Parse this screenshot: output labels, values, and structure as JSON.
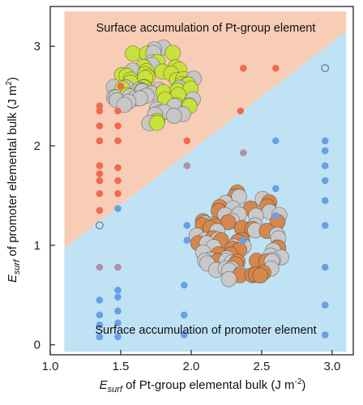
{
  "chart_data": {
    "type": "scatter",
    "xlabel": {
      "symbol": "E",
      "subscript": "surf",
      "text": " of Pt-group elemental bulk (J m",
      "sup": "-2",
      "close": ")"
    },
    "ylabel": {
      "symbol": "E",
      "subscript": "surf",
      "text": " of promoter elemental bulk (J m",
      "sup": "2",
      "close": ")"
    },
    "xlim": [
      1.0,
      3.15
    ],
    "ylim": [
      -0.1,
      3.4
    ],
    "x_ticks": [
      "1.0",
      "1.5",
      "2.0",
      "2.5",
      "3.0"
    ],
    "y_ticks": [
      "0",
      "1",
      "2",
      "3"
    ],
    "regions": [
      {
        "name": "upper",
        "label": "Surface accumulation of Pt-group element",
        "color": "#f8cdb5"
      },
      {
        "name": "lower",
        "label": "Surface accumulation of promoter element",
        "color": "#bfe3f4"
      }
    ],
    "boundary_line": {
      "x": [
        1.1,
        3.1
      ],
      "y": [
        0.97,
        3.15
      ]
    },
    "series": [
      {
        "marker_color": "#ef6b4f",
        "points": [
          [
            1.35,
            1.35
          ],
          [
            1.35,
            1.52
          ],
          [
            1.35,
            1.65
          ],
          [
            1.35,
            1.72
          ],
          [
            1.35,
            1.8
          ],
          [
            1.35,
            2.05
          ],
          [
            1.35,
            2.2
          ],
          [
            1.35,
            2.35
          ],
          [
            1.35,
            2.4
          ],
          [
            1.48,
            1.52
          ],
          [
            1.48,
            1.65
          ],
          [
            1.48,
            1.78
          ],
          [
            1.48,
            2.05
          ],
          [
            1.48,
            2.2
          ],
          [
            1.48,
            2.35
          ],
          [
            1.5,
            2.6
          ],
          [
            1.97,
            2.05
          ],
          [
            2.35,
            2.35
          ],
          [
            2.37,
            2.78
          ],
          [
            2.6,
            2.78
          ]
        ]
      },
      {
        "marker_color": "#6a9ee8",
        "points": [
          [
            1.35,
            0.08
          ],
          [
            1.35,
            0.2
          ],
          [
            1.35,
            0.3
          ],
          [
            1.35,
            0.45
          ],
          [
            1.48,
            0.08
          ],
          [
            1.48,
            0.22
          ],
          [
            1.48,
            0.34
          ],
          [
            1.48,
            0.48
          ],
          [
            1.48,
            0.55
          ],
          [
            1.48,
            1.37
          ],
          [
            1.95,
            0.1
          ],
          [
            1.95,
            0.3
          ],
          [
            1.95,
            0.6
          ],
          [
            1.97,
            1.05
          ],
          [
            1.97,
            1.2
          ],
          [
            2.37,
            1.05
          ],
          [
            2.6,
            1.3
          ],
          [
            2.6,
            1.57
          ],
          [
            2.95,
            0.1
          ],
          [
            2.95,
            0.4
          ],
          [
            2.95,
            0.78
          ],
          [
            2.95,
            1.2
          ],
          [
            2.95,
            1.45
          ],
          [
            2.95,
            1.65
          ],
          [
            2.95,
            1.8
          ],
          [
            2.95,
            1.95
          ],
          [
            2.95,
            2.05
          ],
          [
            2.6,
            2.05
          ]
        ]
      },
      {
        "marker_color": "#b38fa8",
        "points": [
          [
            1.35,
            0.78
          ],
          [
            1.48,
            0.78
          ],
          [
            1.97,
            1.8
          ],
          [
            2.37,
            1.93
          ]
        ]
      },
      {
        "marker_color": "open-circle",
        "points": [
          [
            1.35,
            1.2
          ],
          [
            2.95,
            2.78
          ]
        ]
      }
    ]
  },
  "illustrations": {
    "upper_cluster": {
      "colors": [
        "#c8e13c",
        "#c7c7c7"
      ]
    },
    "lower_cluster": {
      "colors": [
        "#d5884e",
        "#c9c9c9"
      ]
    }
  }
}
